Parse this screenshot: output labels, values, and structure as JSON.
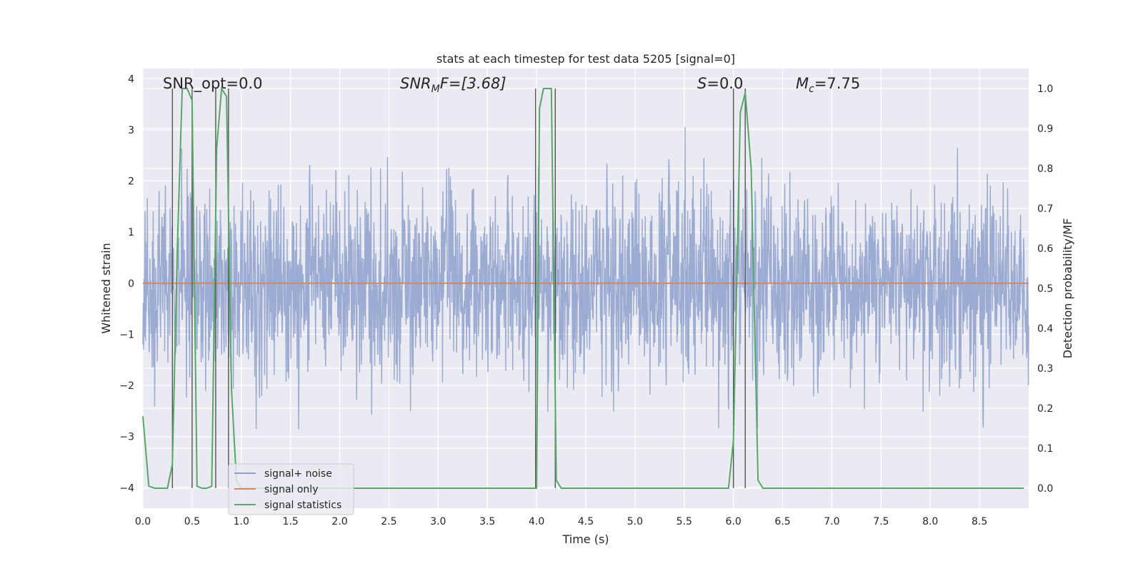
{
  "chart_data": {
    "type": "line",
    "title": "stats at each timestep for test data 5205 [signal=0]",
    "xlabel": "Time (s)",
    "ylabel": "Whitened strain",
    "y2label": "Detection probability/MF",
    "xlim": [
      0,
      9
    ],
    "ylim": [
      -4.4,
      4.2
    ],
    "y2lim": [
      -0.05,
      1.05
    ],
    "xticks": [
      "0.0",
      "0.5",
      "1.0",
      "1.5",
      "2.0",
      "2.5",
      "3.0",
      "3.5",
      "4.0",
      "4.5",
      "5.0",
      "5.5",
      "6.0",
      "6.5",
      "7.0",
      "7.5",
      "8.0",
      "8.5"
    ],
    "yticks": [
      "4",
      "3",
      "2",
      "1",
      "0",
      "−1",
      "−2",
      "−3",
      "−4"
    ],
    "y2ticks": [
      "1.0",
      "0.9",
      "0.8",
      "0.7",
      "0.6",
      "0.5",
      "0.4",
      "0.3",
      "0.2",
      "0.1",
      "0.0"
    ],
    "grid": true,
    "legend": {
      "placement": "lower-left",
      "entries": [
        {
          "name": "signal+ noise",
          "color": "#8da0cb"
        },
        {
          "name": "signal only",
          "color": "#dd8452"
        },
        {
          "name": "signal statistics",
          "color": "#55a868"
        }
      ]
    },
    "annotations": {
      "snr_opt": "SNR_opt=0.0",
      "snr_mf_main": "SNR",
      "snr_mf_sub": "M",
      "snr_mf_rest": "F=[3.68]",
      "s_main": "S",
      "s_rest": "=0.0",
      "mc_main": "M",
      "mc_sub": "c",
      "mc_rest": "=7.75"
    },
    "series": [
      {
        "name": "signal+ noise",
        "axis": "left",
        "color": "#8da0cb",
        "envelope_typical": 2.3,
        "envelope_peak": 3.7,
        "dense_band": [
          -1.6,
          1.5
        ]
      },
      {
        "name": "signal only",
        "axis": "left",
        "color": "#dd8452",
        "x": [
          0,
          9
        ],
        "y": [
          0,
          0
        ]
      },
      {
        "name": "signal statistics",
        "axis": "right",
        "color": "#55a868",
        "x": [
          0.0,
          0.06,
          0.12,
          0.18,
          0.25,
          0.3,
          0.35,
          0.4,
          0.45,
          0.5,
          0.55,
          0.6,
          0.65,
          0.7,
          0.75,
          0.8,
          0.85,
          0.9,
          0.95,
          1.0,
          1.1,
          1.5,
          2.0,
          2.5,
          3.0,
          3.5,
          3.95,
          4.0,
          4.03,
          4.07,
          4.1,
          4.15,
          4.2,
          4.25,
          4.3,
          4.5,
          5.0,
          5.5,
          5.9,
          5.95,
          6.0,
          6.07,
          6.12,
          6.18,
          6.25,
          6.3,
          6.5,
          7.0,
          8.0,
          8.95
        ],
        "y": [
          0.18,
          0.005,
          0.0,
          0.0,
          0.0,
          0.06,
          0.6,
          1.0,
          1.0,
          0.97,
          0.005,
          0.0,
          0.0,
          0.005,
          0.85,
          1.0,
          0.98,
          0.25,
          0.02,
          0.0,
          0.0,
          0.0,
          0.0,
          0.0,
          0.0,
          0.0,
          0.0,
          0.0,
          0.95,
          1.0,
          1.0,
          1.0,
          0.02,
          0.0,
          0.0,
          0.0,
          0.0,
          0.0,
          0.0,
          0.0,
          0.12,
          0.94,
          0.99,
          0.8,
          0.02,
          0.0,
          0.0,
          0.0,
          0.0,
          0.0
        ]
      }
    ],
    "event_markers_x": [
      0.3,
      0.5,
      0.74,
      0.87,
      3.99,
      4.19,
      6.0,
      6.12
    ]
  }
}
